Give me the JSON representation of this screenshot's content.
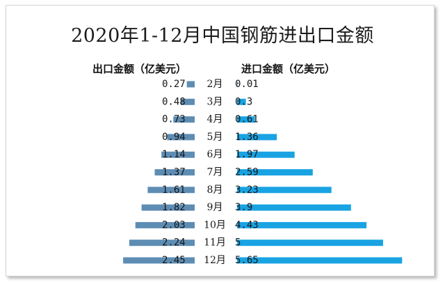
{
  "chart_data": {
    "type": "bar",
    "title": "2020年1-12月中国钢筋进出口金额",
    "categories": [
      "2月",
      "3月",
      "4月",
      "5月",
      "6月",
      "7月",
      "8月",
      "9月",
      "10月",
      "11月",
      "12月"
    ],
    "series": [
      {
        "name": "出口金额（亿美元）",
        "values": [
          0.27,
          0.48,
          0.73,
          0.94,
          1.14,
          1.37,
          1.61,
          1.82,
          2.03,
          2.24,
          2.45
        ]
      },
      {
        "name": "进口金额（亿美元）",
        "values": [
          0.01,
          0.3,
          0.61,
          1.36,
          1.97,
          2.59,
          3.23,
          3.9,
          4.43,
          5,
          5.65
        ]
      }
    ],
    "value_labels": {
      "export": [
        "0.27",
        "0.48",
        "0.73",
        "0.94",
        "1.14",
        "1.37",
        "1.61",
        "1.82",
        "2.03",
        "2.24",
        "2.45"
      ],
      "import": [
        "0.01",
        "0.3",
        "0.61",
        "1.36",
        "1.97",
        "2.59",
        "3.23",
        "3.9",
        "4.43",
        "5",
        "5.65"
      ]
    },
    "colors": {
      "export": "#5e8db4",
      "import": "#19a3e3"
    },
    "orientation": "horizontal-butterfly",
    "grid": false,
    "legend": "none"
  }
}
